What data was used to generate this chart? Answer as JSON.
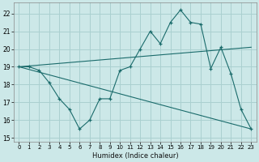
{
  "xlabel": "Humidex (Indice chaleur)",
  "bg_color": "#cce8e8",
  "grid_color": "#aad0d0",
  "line_color": "#1a6b6b",
  "xlim": [
    -0.5,
    23.5
  ],
  "ylim": [
    14.8,
    22.6
  ],
  "yticks": [
    15,
    16,
    17,
    18,
    19,
    20,
    21,
    22
  ],
  "xticks": [
    0,
    1,
    2,
    3,
    4,
    5,
    6,
    7,
    8,
    9,
    10,
    11,
    12,
    13,
    14,
    15,
    16,
    17,
    18,
    19,
    20,
    21,
    22,
    23
  ],
  "line1_x": [
    0,
    1,
    2,
    3,
    4,
    5,
    6,
    7,
    8,
    9,
    10,
    11,
    12,
    13,
    14,
    15,
    16,
    17,
    18,
    19,
    20,
    21,
    22,
    23
  ],
  "line1_y": [
    19.0,
    19.0,
    18.8,
    18.1,
    17.2,
    16.6,
    15.5,
    16.0,
    17.2,
    17.2,
    18.8,
    19.0,
    20.0,
    21.0,
    20.3,
    21.5,
    22.2,
    21.5,
    21.4,
    18.9,
    20.1,
    18.6,
    16.6,
    15.5
  ],
  "line2_x": [
    0,
    23
  ],
  "line2_y": [
    19.0,
    15.5
  ],
  "line3_x": [
    0,
    23
  ],
  "line3_y": [
    19.0,
    20.1
  ],
  "xlabel_fontsize": 6,
  "tick_fontsize": 5
}
